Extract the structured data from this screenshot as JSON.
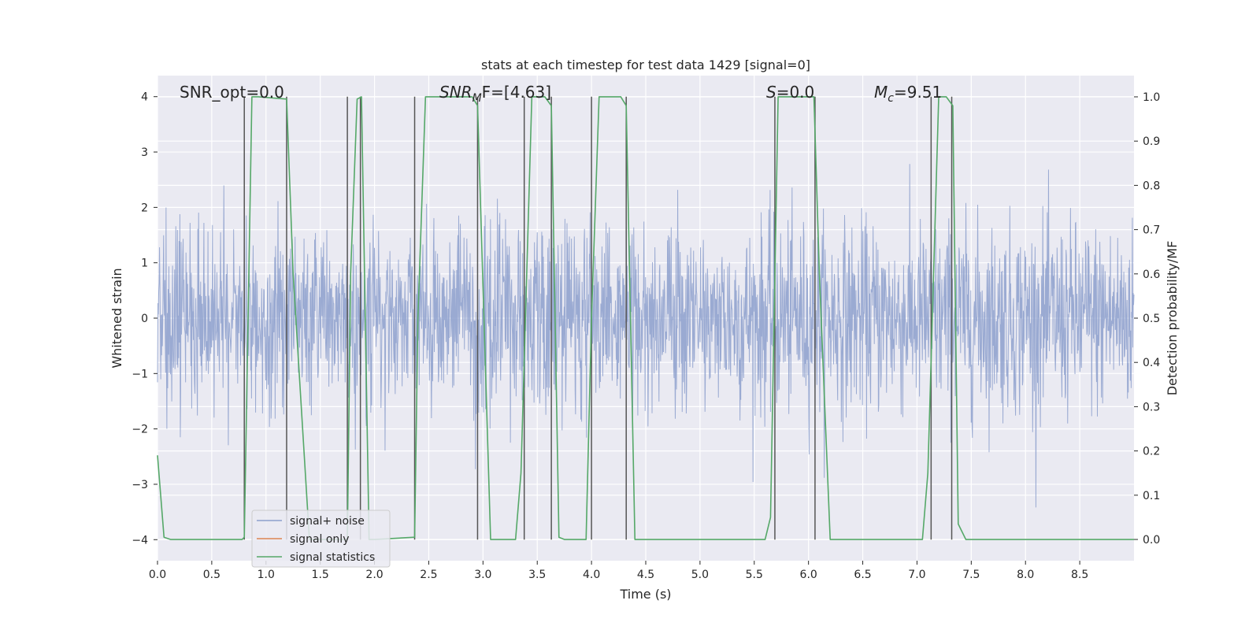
{
  "chart_data": {
    "type": "line",
    "title": "stats at each timestep for test data 1429 [signal=0]",
    "xlabel": "Time (s)",
    "ylabel_left": "Whitened strain",
    "ylabel_right": "Detection probability/MF",
    "xlim": [
      0.0,
      9.0
    ],
    "ylim_left": [
      -4.38,
      4.38
    ],
    "ylim_right": [
      -0.048,
      1.048
    ],
    "x_ticks": [
      "0.0",
      "0.5",
      "1.0",
      "1.5",
      "2.0",
      "2.5",
      "3.0",
      "3.5",
      "4.0",
      "4.5",
      "5.0",
      "5.5",
      "6.0",
      "6.5",
      "7.0",
      "7.5",
      "8.0",
      "8.5"
    ],
    "y_left_ticks": [
      "−4",
      "−3",
      "−2",
      "−1",
      "0",
      "1",
      "2",
      "3",
      "4"
    ],
    "y_right_ticks": [
      "0.0",
      "0.1",
      "0.2",
      "0.3",
      "0.4",
      "0.5",
      "0.6",
      "0.7",
      "0.8",
      "0.9",
      "1.0"
    ],
    "grid": true,
    "legend_position": "lower-left",
    "series": [
      {
        "name": "signal+ noise",
        "color": "#8c9fcc",
        "axis": "left",
        "kind": "noise",
        "sigma": 0.85,
        "peak_abs": 4.0
      },
      {
        "name": "signal only",
        "color": "#dd8452",
        "axis": "left",
        "values": []
      },
      {
        "name": "signal statistics",
        "color": "#55a868",
        "axis": "right",
        "x": [
          0.0,
          0.06,
          0.12,
          0.78,
          0.8,
          0.87,
          0.93,
          1.19,
          1.25,
          1.4,
          1.75,
          1.78,
          1.84,
          1.88,
          1.95,
          2.0,
          2.37,
          2.4,
          2.47,
          2.9,
          2.95,
          3.07,
          3.3,
          3.35,
          3.45,
          3.57,
          3.63,
          3.7,
          3.75,
          3.95,
          4.0,
          4.07,
          4.27,
          4.32,
          4.4,
          5.6,
          5.65,
          5.72,
          6.05,
          6.1,
          6.2,
          7.05,
          7.1,
          7.2,
          7.27,
          7.33,
          7.38,
          7.45,
          9.0
        ],
        "y": [
          0.19,
          0.005,
          0.0,
          0.0,
          0.005,
          1.0,
          1.0,
          0.995,
          0.6,
          0.0,
          0.0,
          0.6,
          0.995,
          1.0,
          0.0,
          0.0,
          0.005,
          0.5,
          1.0,
          1.0,
          0.98,
          0.0,
          0.0,
          0.15,
          1.0,
          1.0,
          0.98,
          0.005,
          0.0,
          0.0,
          0.5,
          1.0,
          1.0,
          0.98,
          0.0,
          0.0,
          0.05,
          1.0,
          1.0,
          0.6,
          0.0,
          0.0,
          0.15,
          1.0,
          1.0,
          0.98,
          0.035,
          0.0,
          0.0
        ]
      }
    ],
    "event_lines_x": [
      0.8,
      1.19,
      1.75,
      1.87,
      2.37,
      2.95,
      3.38,
      3.63,
      4.0,
      4.32,
      5.69,
      6.06,
      7.13,
      7.32
    ],
    "event_line_color": "#555555",
    "annotations": {
      "snr_opt": "SNR_opt=0.0",
      "snr_mf_base": "SNR",
      "snr_mf_sub": "M",
      "snr_mf_rest": "F=[4.63]",
      "s_var": "S",
      "s_rest": "=0.0",
      "mc_base": "M",
      "mc_sub": "c",
      "mc_rest": "=9.51"
    }
  }
}
